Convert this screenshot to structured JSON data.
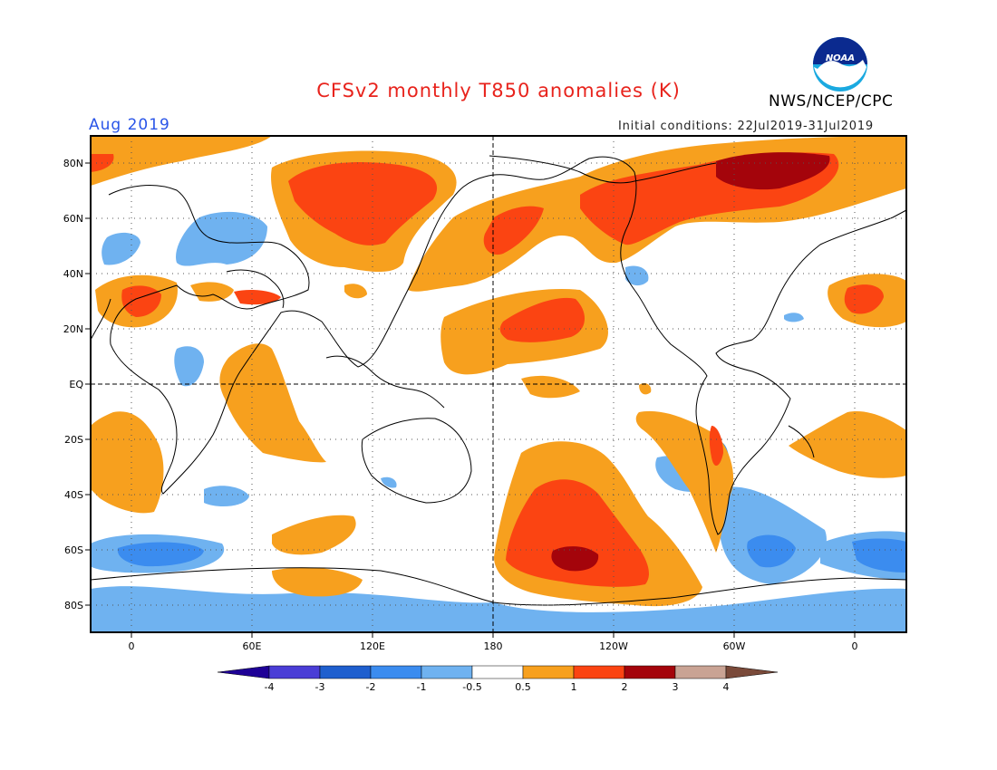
{
  "title": "CFSv2 monthly T850 anomalies (K)",
  "valid_month": "Aug 2019",
  "initial_conditions": "Initial conditions: 22Jul2019-31Jul2019",
  "credit": "NWS/NCEP/CPC",
  "logo_text": "NOAA",
  "map": {
    "lat_labels": [
      "80N",
      "60N",
      "40N",
      "20N",
      "EQ",
      "20S",
      "40S",
      "60S",
      "80S"
    ],
    "lon_labels": [
      "0",
      "60E",
      "120E",
      "180",
      "120W",
      "60W",
      "0"
    ],
    "lon_range": [
      -20,
      380
    ],
    "lat_range": [
      -90,
      90
    ],
    "grid": "dotted",
    "reference_lines": [
      "equator",
      "dateline"
    ]
  },
  "colorbar": {
    "tick_labels": [
      "-4",
      "-3",
      "-2",
      "-1",
      "-0.5",
      "0.5",
      "1",
      "2",
      "3",
      "4"
    ],
    "bins": [
      {
        "range": "< -4",
        "color": "#1e0096"
      },
      {
        "range": "-4 to -3",
        "color": "#4a3dd6"
      },
      {
        "range": "-3 to -2",
        "color": "#1f5fce"
      },
      {
        "range": "-2 to -1",
        "color": "#3b8cef"
      },
      {
        "range": "-1 to -0.5",
        "color": "#6fb2f0"
      },
      {
        "range": "-0.5 to 0.5",
        "color": "#ffffff"
      },
      {
        "range": "0.5 to 1",
        "color": "#f7a01e"
      },
      {
        "range": "1 to 2",
        "color": "#fb4412"
      },
      {
        "range": "2 to 3",
        "color": "#a4040b"
      },
      {
        "range": "3 to 4",
        "color": "#c9a394"
      },
      {
        "range": "> 4",
        "color": "#7a4a3a"
      }
    ]
  }
}
